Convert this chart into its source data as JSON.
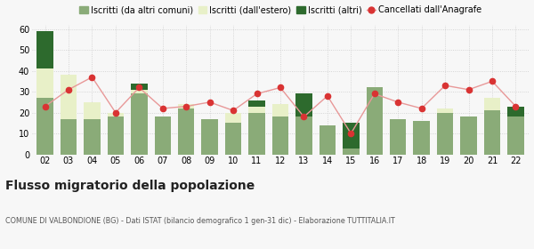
{
  "years": [
    "02",
    "03",
    "04",
    "05",
    "06",
    "07",
    "08",
    "09",
    "10",
    "11",
    "12",
    "13",
    "14",
    "15",
    "16",
    "17",
    "18",
    "19",
    "20",
    "21",
    "22"
  ],
  "iscritti_altri_comuni": [
    27,
    17,
    17,
    18,
    29,
    18,
    22,
    17,
    15,
    20,
    18,
    18,
    14,
    3,
    32,
    17,
    16,
    20,
    18,
    21,
    18
  ],
  "iscritti_estero": [
    14,
    21,
    8,
    2,
    2,
    0,
    2,
    0,
    5,
    3,
    6,
    0,
    0,
    0,
    0,
    0,
    0,
    2,
    0,
    6,
    0
  ],
  "iscritti_altri": [
    18,
    0,
    0,
    0,
    3,
    0,
    0,
    0,
    0,
    3,
    0,
    11,
    0,
    12,
    0,
    0,
    0,
    0,
    0,
    0,
    5
  ],
  "cancellati": [
    23,
    31,
    37,
    20,
    32,
    22,
    23,
    25,
    21,
    29,
    32,
    18,
    28,
    10,
    29,
    25,
    22,
    33,
    31,
    35,
    23
  ],
  "color_altri_comuni": "#8aab78",
  "color_estero": "#e8f0c8",
  "color_altri": "#2d6a2d",
  "color_cancellati_dot": "#d93333",
  "color_cancellati_line": "#e89898",
  "background_color": "#f7f7f7",
  "grid_color": "#cccccc",
  "title": "Flusso migratorio della popolazione",
  "subtitle": "COMUNE DI VALBONDIONE (BG) - Dati ISTAT (bilancio demografico 1 gen-31 dic) - Elaborazione TUTTITALIA.IT",
  "legend_labels": [
    "Iscritti (da altri comuni)",
    "Iscritti (dall'estero)",
    "Iscritti (altri)",
    "Cancellati dall'Anagrafe"
  ],
  "ylim": [
    0,
    62
  ],
  "yticks": [
    0,
    10,
    20,
    30,
    40,
    50,
    60
  ]
}
